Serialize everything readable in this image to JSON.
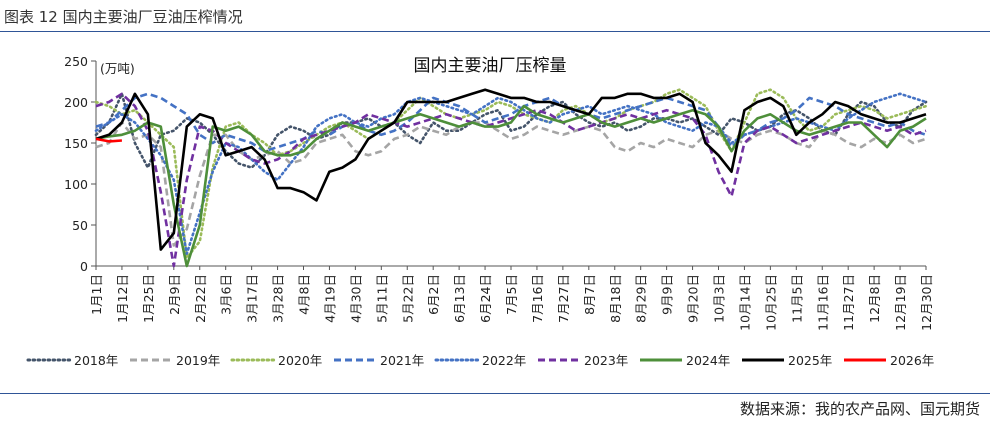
{
  "figure_title": "图表 12 国内主要油厂豆油压榨情况",
  "source": "数据来源：我的农产品网、国元期货",
  "chart_data": {
    "type": "line",
    "title": "国内主要油厂压榨量",
    "unit_label": "(万吨)",
    "xlabel": "",
    "ylabel": "",
    "ylim": [
      0,
      250
    ],
    "yticks": [
      0,
      50,
      100,
      150,
      200,
      250
    ],
    "grid": false,
    "legend_position": "bottom",
    "x_tick_labels": [
      "1月1日",
      "1月12日",
      "1月25日",
      "2月9日",
      "2月22日",
      "3月6日",
      "3月17日",
      "3月28日",
      "4月8日",
      "4月19日",
      "4月30日",
      "5月11日",
      "5月22日",
      "6月2日",
      "6月13日",
      "6月24日",
      "7月5日",
      "7月16日",
      "7月27日",
      "8月7日",
      "8月18日",
      "8月29日",
      "9月9日",
      "9月20日",
      "10月3日",
      "10月14日",
      "10月25日",
      "11月5日",
      "11月16日",
      "11月27日",
      "12月8日",
      "12月19日",
      "12月30日"
    ],
    "series": [
      {
        "name": "2018年",
        "color": "#44546a",
        "dash": "dot",
        "values": [
          160,
          175,
          210,
          150,
          120,
          160,
          165,
          180,
          175,
          160,
          140,
          125,
          120,
          135,
          160,
          170,
          165,
          155,
          160,
          175,
          175,
          180,
          170,
          175,
          160,
          150,
          175,
          165,
          165,
          175,
          185,
          190,
          165,
          170,
          185,
          195,
          200,
          185,
          175,
          170,
          175,
          165,
          170,
          180,
          180,
          175,
          180,
          170,
          160,
          180,
          175,
          165,
          170,
          185,
          190,
          180,
          165,
          160,
          185,
          200,
          195,
          175,
          170,
          190,
          200
        ]
      },
      {
        "name": "2019年",
        "color": "#a5a5a5",
        "dash": "dash",
        "values": [
          145,
          150,
          175,
          155,
          160,
          145,
          25,
          45,
          110,
          160,
          160,
          140,
          130,
          135,
          140,
          125,
          130,
          150,
          155,
          160,
          140,
          135,
          140,
          155,
          160,
          170,
          165,
          160,
          170,
          175,
          175,
          165,
          155,
          160,
          170,
          165,
          160,
          165,
          170,
          165,
          145,
          140,
          150,
          145,
          155,
          150,
          145,
          160,
          165,
          155,
          150,
          160,
          165,
          160,
          150,
          145,
          165,
          160,
          150,
          145,
          155,
          150,
          160,
          150,
          155
        ]
      },
      {
        "name": "2020年",
        "color": "#9bbb59",
        "dash": "dot",
        "values": [
          200,
          195,
          185,
          190,
          175,
          160,
          145,
          10,
          30,
          120,
          170,
          175,
          160,
          150,
          135,
          140,
          150,
          160,
          170,
          175,
          165,
          155,
          165,
          175,
          190,
          205,
          195,
          185,
          180,
          185,
          190,
          200,
          195,
          185,
          180,
          175,
          190,
          195,
          185,
          175,
          180,
          190,
          195,
          200,
          210,
          215,
          205,
          195,
          165,
          140,
          175,
          210,
          215,
          205,
          180,
          165,
          170,
          185,
          190,
          195,
          190,
          180,
          185,
          190,
          195
        ]
      },
      {
        "name": "2021年",
        "color": "#4472c4",
        "dash": "dash",
        "values": [
          170,
          175,
          190,
          205,
          210,
          205,
          195,
          185,
          160,
          150,
          160,
          155,
          150,
          140,
          145,
          150,
          155,
          165,
          160,
          170,
          175,
          165,
          160,
          165,
          175,
          190,
          205,
          200,
          195,
          185,
          175,
          180,
          185,
          195,
          200,
          205,
          195,
          190,
          185,
          180,
          185,
          190,
          195,
          200,
          205,
          200,
          195,
          190,
          170,
          145,
          160,
          165,
          175,
          180,
          190,
          205,
          200,
          195,
          185,
          180,
          175,
          170,
          175,
          165,
          160
        ]
      },
      {
        "name": "2022年",
        "color": "#4472c4",
        "dash": "dot",
        "values": [
          165,
          175,
          185,
          175,
          155,
          135,
          105,
          15,
          65,
          115,
          150,
          145,
          130,
          115,
          105,
          125,
          145,
          170,
          180,
          185,
          175,
          170,
          180,
          185,
          200,
          205,
          200,
          195,
          190,
          185,
          195,
          205,
          200,
          190,
          180,
          175,
          185,
          190,
          195,
          185,
          190,
          195,
          190,
          185,
          175,
          170,
          165,
          175,
          170,
          150,
          160,
          165,
          170,
          175,
          180,
          175,
          170,
          165,
          180,
          190,
          200,
          205,
          210,
          205,
          200
        ]
      },
      {
        "name": "2023年",
        "color": "#7030a0",
        "dash": "dash",
        "values": [
          195,
          200,
          210,
          195,
          165,
          90,
          0,
          105,
          170,
          165,
          150,
          140,
          130,
          125,
          130,
          140,
          155,
          160,
          165,
          170,
          175,
          185,
          180,
          175,
          170,
          175,
          180,
          185,
          180,
          175,
          170,
          175,
          180,
          185,
          190,
          185,
          175,
          165,
          170,
          175,
          180,
          185,
          180,
          185,
          190,
          185,
          180,
          160,
          115,
          85,
          150,
          165,
          170,
          160,
          150,
          155,
          160,
          165,
          170,
          175,
          170,
          165,
          170,
          160,
          165
        ]
      },
      {
        "name": "2024年",
        "color": "#4e8f3a",
        "dash": "solid",
        "values": [
          155,
          158,
          160,
          165,
          175,
          170,
          75,
          0,
          50,
          170,
          165,
          170,
          160,
          140,
          135,
          135,
          140,
          155,
          165,
          175,
          170,
          165,
          170,
          175,
          180,
          185,
          180,
          175,
          170,
          175,
          170,
          170,
          175,
          195,
          185,
          180,
          175,
          180,
          185,
          175,
          170,
          175,
          180,
          175,
          180,
          185,
          190,
          185,
          170,
          140,
          165,
          180,
          185,
          175,
          165,
          160,
          165,
          170,
          175,
          175,
          160,
          145,
          165,
          170,
          180
        ]
      },
      {
        "name": "2025年",
        "color": "#000000",
        "dash": "solid",
        "values": [
          155,
          160,
          175,
          210,
          185,
          20,
          40,
          170,
          185,
          180,
          135,
          140,
          145,
          130,
          95,
          95,
          90,
          80,
          115,
          120,
          130,
          155,
          165,
          175,
          200,
          200,
          200,
          200,
          205,
          210,
          215,
          210,
          205,
          205,
          200,
          200,
          195,
          190,
          185,
          205,
          205,
          210,
          210,
          205,
          205,
          210,
          200,
          150,
          135,
          115,
          190,
          200,
          205,
          195,
          160,
          175,
          185,
          200,
          195,
          185,
          180,
          175,
          175,
          180,
          185
        ]
      },
      {
        "name": "2026年",
        "color": "#ff0000",
        "dash": "solid",
        "values": [
          155,
          152,
          153
        ]
      }
    ]
  }
}
